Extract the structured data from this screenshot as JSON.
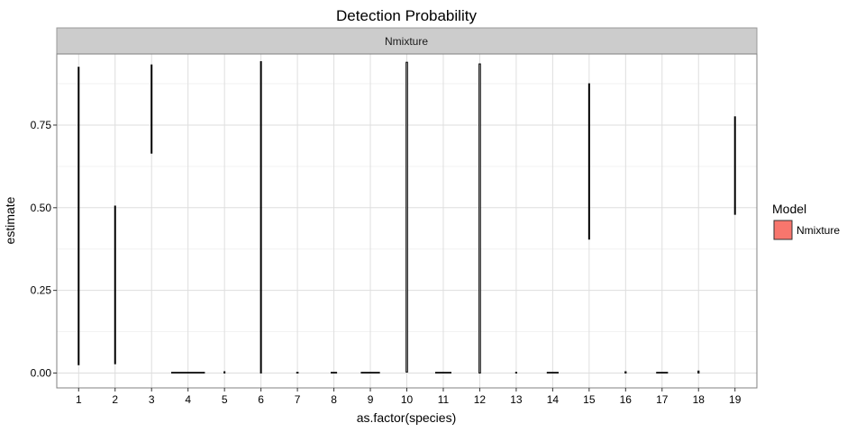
{
  "chart_data": {
    "type": "bar",
    "title": "Detection Probability",
    "facet_label": "Nmixture",
    "xlabel": "as.factor(species)",
    "ylabel": "estimate",
    "categories": [
      "1",
      "2",
      "3",
      "4",
      "5",
      "6",
      "7",
      "8",
      "9",
      "10",
      "11",
      "12",
      "13",
      "14",
      "15",
      "16",
      "17",
      "18",
      "19"
    ],
    "y_ticks": [
      "0.00",
      "0.25",
      "0.50",
      "0.75"
    ],
    "y_tick_values": [
      0,
      0.25,
      0.5,
      0.75
    ],
    "ylim": [
      -0.045,
      0.965
    ],
    "grid": true,
    "legend": {
      "title": "Model",
      "position": "right",
      "entries": [
        "Nmixture"
      ]
    },
    "series": [
      {
        "name": "Nmixture",
        "color": "#F8766D",
        "ranges": [
          [
            0.025,
            0.925
          ],
          [
            0.028,
            0.505
          ],
          [
            0.665,
            0.932
          ],
          [
            0.0,
            0.002
          ],
          [
            0.0,
            0.004
          ],
          [
            0.0,
            0.942
          ],
          [
            0.0,
            0.002
          ],
          [
            0.0,
            0.002
          ],
          [
            0.0,
            0.002
          ],
          [
            0.003,
            0.94
          ],
          [
            0.0,
            0.002
          ],
          [
            0.0,
            0.935
          ],
          [
            0.0,
            0.002
          ],
          [
            0.0,
            0.002
          ],
          [
            0.405,
            0.875
          ],
          [
            0.0,
            0.004
          ],
          [
            0.0,
            0.002
          ],
          [
            0.0,
            0.006
          ],
          [
            0.48,
            0.775
          ]
        ],
        "widths": [
          0.01,
          0.01,
          0.01,
          0.9,
          0.02,
          0.02,
          0.04,
          0.15,
          0.5,
          0.04,
          0.42,
          0.04,
          0.03,
          0.3,
          0.01,
          0.03,
          0.3,
          0.03,
          0.01
        ]
      }
    ]
  }
}
